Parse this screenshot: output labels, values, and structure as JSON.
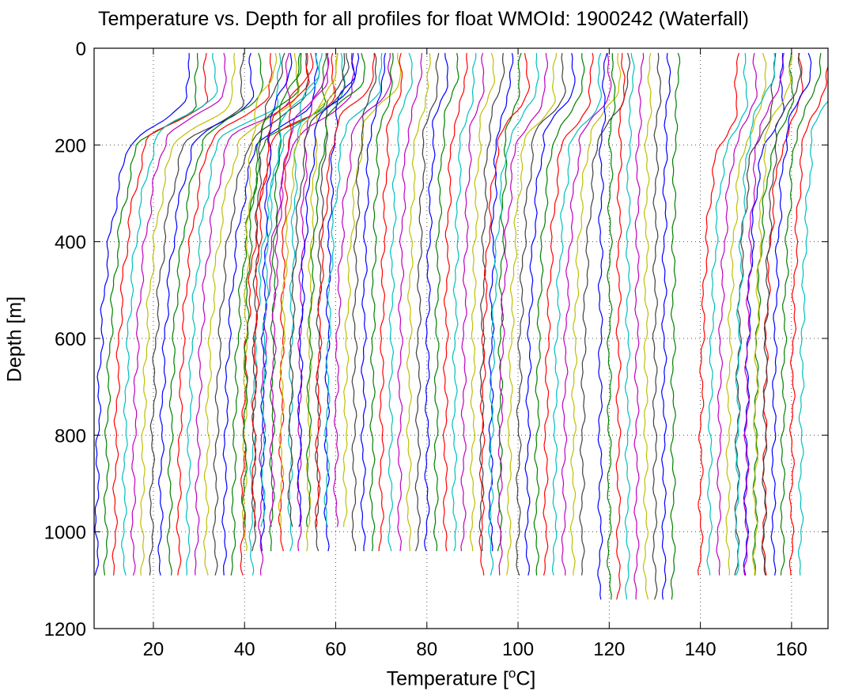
{
  "chart_data": {
    "type": "line",
    "title": "Temperature vs. Depth for all profiles for float WMOId: 1900242 (Waterfall)",
    "xlabel_prefix": "Temperature [",
    "xlabel_sup": "o",
    "xlabel_suffix": "C]",
    "ylabel": "Depth [m]",
    "xlim": [
      7,
      168
    ],
    "ylim": [
      0,
      1200
    ],
    "y_reversed": true,
    "grid": true,
    "x_ticks": [
      20,
      40,
      60,
      80,
      100,
      120,
      140,
      160
    ],
    "y_ticks": [
      0,
      200,
      400,
      600,
      800,
      1000,
      1200
    ],
    "colors": [
      "#0000ff",
      "#008000",
      "#ff0000",
      "#00bfbf",
      "#bf00bf",
      "#bfbf00",
      "#404040"
    ],
    "profile_offset_step": 2.0,
    "group_depth_pattern": [
      1090,
      1040,
      990,
      1040,
      1090,
      1140
    ],
    "groups": [
      {
        "start_offset": 0,
        "count": 19,
        "surface_temp": 27.5,
        "mixed_depth": 100,
        "thermocline_depth": 200,
        "deep_temp": 7.5,
        "max_depth": 1090
      },
      {
        "start_offset": 20.5,
        "count": 10,
        "surface_temp": 26.0,
        "mixed_depth": 40,
        "thermocline_depth": 120,
        "deep_temp": 19.5,
        "max_depth": 1040
      },
      {
        "start_offset": 40,
        "count": 12,
        "surface_temp": 12.0,
        "mixed_depth": 70,
        "thermocline_depth": 160,
        "deep_temp": 0.0,
        "max_depth": 990
      },
      {
        "start_offset": 60.5,
        "count": 17,
        "surface_temp": 8.0,
        "mixed_depth": 60,
        "thermocline_depth": 180,
        "deep_temp": 3.5,
        "max_depth": 1040
      },
      {
        "start_offset": 92,
        "count": 12,
        "surface_temp": 10.0,
        "mixed_depth": 90,
        "thermocline_depth": 200,
        "deep_temp": 0.0,
        "max_depth": 1090
      },
      {
        "start_offset": 118,
        "count": 9,
        "surface_temp": 1.0,
        "mixed_depth": 80,
        "thermocline_depth": 200,
        "deep_temp": 0.0,
        "max_depth": 1140
      },
      {
        "start_offset": 135,
        "count": 8,
        "surface_temp": 13.0,
        "mixed_depth": 100,
        "thermocline_depth": 250,
        "deep_temp": 5.0,
        "max_depth": 1090
      },
      {
        "start_offset": 148,
        "count": 8,
        "surface_temp": 8.0,
        "mixed_depth": 50,
        "thermocline_depth": 180,
        "deep_temp": 0.0,
        "max_depth": 1090
      }
    ]
  }
}
